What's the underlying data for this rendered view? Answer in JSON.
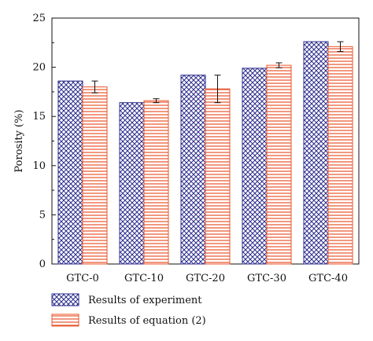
{
  "chart_data": {
    "type": "bar",
    "title": "",
    "xlabel": "",
    "ylabel": "Porosity (%)",
    "ylim": [
      0,
      25
    ],
    "yticks": [
      0,
      5,
      10,
      15,
      20,
      25
    ],
    "categories": [
      "GTC-0",
      "GTC-10",
      "GTC-20",
      "GTC-30",
      "GTC-40"
    ],
    "series": [
      {
        "name": "Results of experiment",
        "values": [
          18.6,
          16.4,
          19.2,
          19.9,
          22.6
        ],
        "errors": null,
        "pattern": "crosshatch",
        "color": "#2b2b8c"
      },
      {
        "name": "Results of equation (2)",
        "values": [
          18.0,
          16.6,
          17.8,
          20.2,
          22.1
        ],
        "errors": [
          0.6,
          0.2,
          1.4,
          0.25,
          0.5
        ],
        "pattern": "horizontal",
        "color": "#e8542a"
      }
    ],
    "legend_position": "bottom-left",
    "grid": false
  }
}
